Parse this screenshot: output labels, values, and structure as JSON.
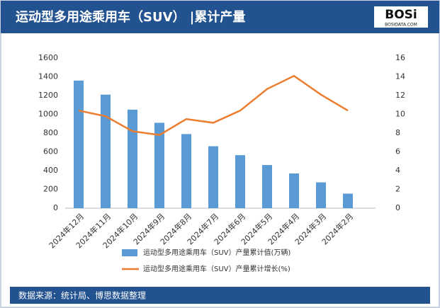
{
  "header": {
    "title": "运动型多用途乘用车（SUV） |累计产量",
    "logo": "BOSi",
    "logo_sub": "BOSIDATA.COM"
  },
  "footer": {
    "source": "数据来源：统计局、博思数据整理"
  },
  "chart_data": {
    "type": "bar",
    "categories": [
      "2024年12月",
      "2024年11月",
      "2024年10月",
      "2024年9月",
      "2024年8月",
      "2024年7月",
      "2024年6月",
      "2024年5月",
      "2024年4月",
      "2024年3月",
      "2024年2月"
    ],
    "series": [
      {
        "name": "运动型多用途乘用车（SUV）产量累计值(万辆)",
        "type": "bar",
        "color": "#5b9bd5",
        "values": [
          1360,
          1210,
          1050,
          910,
          790,
          660,
          565,
          460,
          370,
          275,
          155
        ]
      },
      {
        "name": "运动型多用途乘用车（SUV）产量累计增长(%)",
        "type": "line",
        "axis": "y2",
        "color": "#ed7d31",
        "values": [
          10.4,
          9.8,
          8.2,
          7.8,
          9.5,
          9.1,
          10.4,
          12.7,
          14.1,
          12.1,
          10.4
        ]
      }
    ],
    "ylim": [
      0,
      1600
    ],
    "yticks": [
      0,
      200,
      400,
      600,
      800,
      1000,
      1200,
      1400,
      1600
    ],
    "y2lim": [
      0,
      16
    ],
    "y2ticks": [
      0,
      2,
      4,
      6,
      8,
      10,
      12,
      14,
      16
    ],
    "legend": "bottom"
  }
}
